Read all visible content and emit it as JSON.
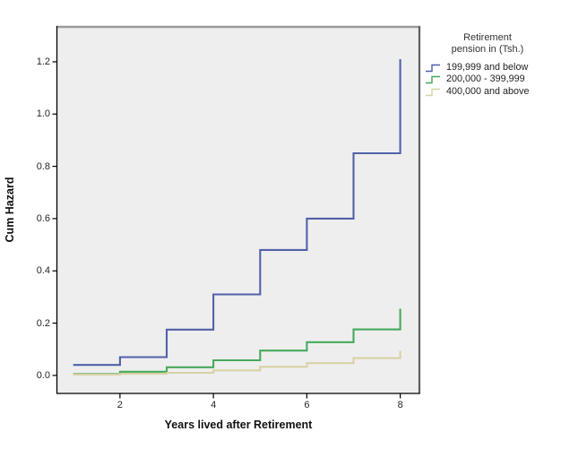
{
  "chart_data": {
    "type": "line",
    "subtype": "step-post",
    "title": "",
    "xlabel": "Years lived after Retirement",
    "ylabel": "Cum Hazard",
    "x_ticks": [
      "2",
      "4",
      "6",
      "8"
    ],
    "y_ticks": [
      "0.0",
      "0.2",
      "0.4",
      "0.6",
      "0.8",
      "1.0",
      "1.2"
    ],
    "xlim": [
      0.65,
      8.4
    ],
    "ylim": [
      -0.069,
      1.337
    ],
    "grid": "off",
    "plot_background": "#eeeeef",
    "legend": {
      "position": "right",
      "title_lines": [
        "Retirement",
        "pension in (Tsh.)"
      ]
    },
    "series": [
      {
        "name": "199,999 and below",
        "color": "#5161a8",
        "x": [
          1,
          2,
          3,
          4,
          5,
          6,
          7,
          8
        ],
        "y": [
          0.04,
          0.07,
          0.175,
          0.31,
          0.48,
          0.6,
          0.85,
          1.21
        ]
      },
      {
        "name": "200,000 - 399,999",
        "color": "#47a95b",
        "x": [
          1,
          2,
          3,
          4,
          5,
          6,
          7,
          8
        ],
        "y": [
          0.005,
          0.014,
          0.031,
          0.058,
          0.095,
          0.127,
          0.176,
          0.255
        ]
      },
      {
        "name": "400,000 and above",
        "color": "#d8d2a4",
        "x": [
          1,
          2,
          3,
          4,
          5,
          6,
          7,
          8
        ],
        "y": [
          0.003,
          0.006,
          0.01,
          0.019,
          0.033,
          0.047,
          0.066,
          0.094
        ]
      }
    ]
  }
}
